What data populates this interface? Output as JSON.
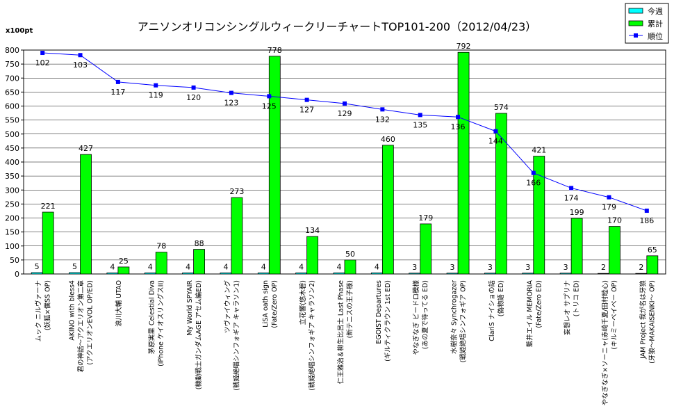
{
  "chart_data": {
    "type": "bar",
    "title": "アニソンオリコンシングルウィークリーチャートTOP101-200（2012/04/23）",
    "ylabel": "x100pt",
    "ylim": [
      0,
      800
    ],
    "yticks": [
      0,
      50,
      100,
      150,
      200,
      250,
      300,
      350,
      400,
      450,
      500,
      550,
      600,
      650,
      700,
      750,
      800
    ],
    "grid": true,
    "legend_position": "top-right",
    "categories": [
      [
        "ムック ニルヴァーナ",
        "(妖狐×僕SS OP)"
      ],
      [
        "AKINO with bless4",
        "君の神話～アクエリオン第二章",
        "(アクエリオンEVOL OP/ED)"
      ],
      [
        "浪川大輔 UTAO"
      ],
      [
        "茅原実里 Celestial Diva",
        "(iPhone ケイオスリングスII)"
      ],
      [
        "My World SPYAIR",
        "(機動戦士ガンダムAGE アセム編ED)"
      ],
      [
        "ツヴァイウィング",
        "(戦姫絶唱シンフォギア キャラソン1)"
      ],
      [
        "LiSA oath sign",
        "(Fate/Zero OP)"
      ],
      [
        "立花響(悠木碧)",
        "(戦姫絶唱シンフォギア キャラソン2)"
      ],
      [
        "仁王雅治＆柳生比呂士 Last Phase",
        "(新テニスの王子様)"
      ],
      [
        "EGOIST Departures",
        "(ギルティクラウン 1st ED)"
      ],
      [
        "やなぎなぎ ビードロ模様",
        "(あの夏で待ってる ED)"
      ],
      [
        "水樹奈々 Synchrogazer",
        "(戦姫絶唱シンフォギア OP)"
      ],
      [
        "ClariS ナイショの話",
        "(偽物語 ED)"
      ],
      [
        "藍井エイル MEMORIA",
        "(Fate/Zero ED)"
      ],
      [
        "妄想レオ サプリナ",
        "(トリコ ED)"
      ],
      [
        "やなぎなぎ×ソーニャ(赤崎千夏/田村睦心)",
        "(キルミーベイベー OP)"
      ],
      [
        "JAM Project 我が名は牙狼",
        "(牙狼～MAKAISENKI～ OP)"
      ]
    ],
    "series": [
      {
        "name": "今週",
        "type": "bar",
        "color": "#00ffff",
        "values": [
          5,
          5,
          4,
          4,
          4,
          4,
          4,
          4,
          4,
          4,
          3,
          3,
          3,
          3,
          3,
          2,
          2
        ]
      },
      {
        "name": "累計",
        "type": "bar",
        "color": "#00ff00",
        "values": [
          221,
          427,
          25,
          78,
          88,
          273,
          778,
          134,
          50,
          460,
          179,
          792,
          574,
          421,
          199,
          170,
          65
        ]
      },
      {
        "name": "順位",
        "type": "line",
        "color": "#0000ff",
        "values": [
          102,
          103,
          117,
          119,
          120,
          123,
          125,
          127,
          129,
          132,
          135,
          136,
          144,
          166,
          174,
          179,
          186
        ],
        "plotted_on_scale": [
          790,
          782,
          686,
          674,
          666,
          647,
          635,
          622,
          609,
          588,
          568,
          561,
          510,
          361,
          307,
          274,
          226
        ]
      }
    ]
  }
}
